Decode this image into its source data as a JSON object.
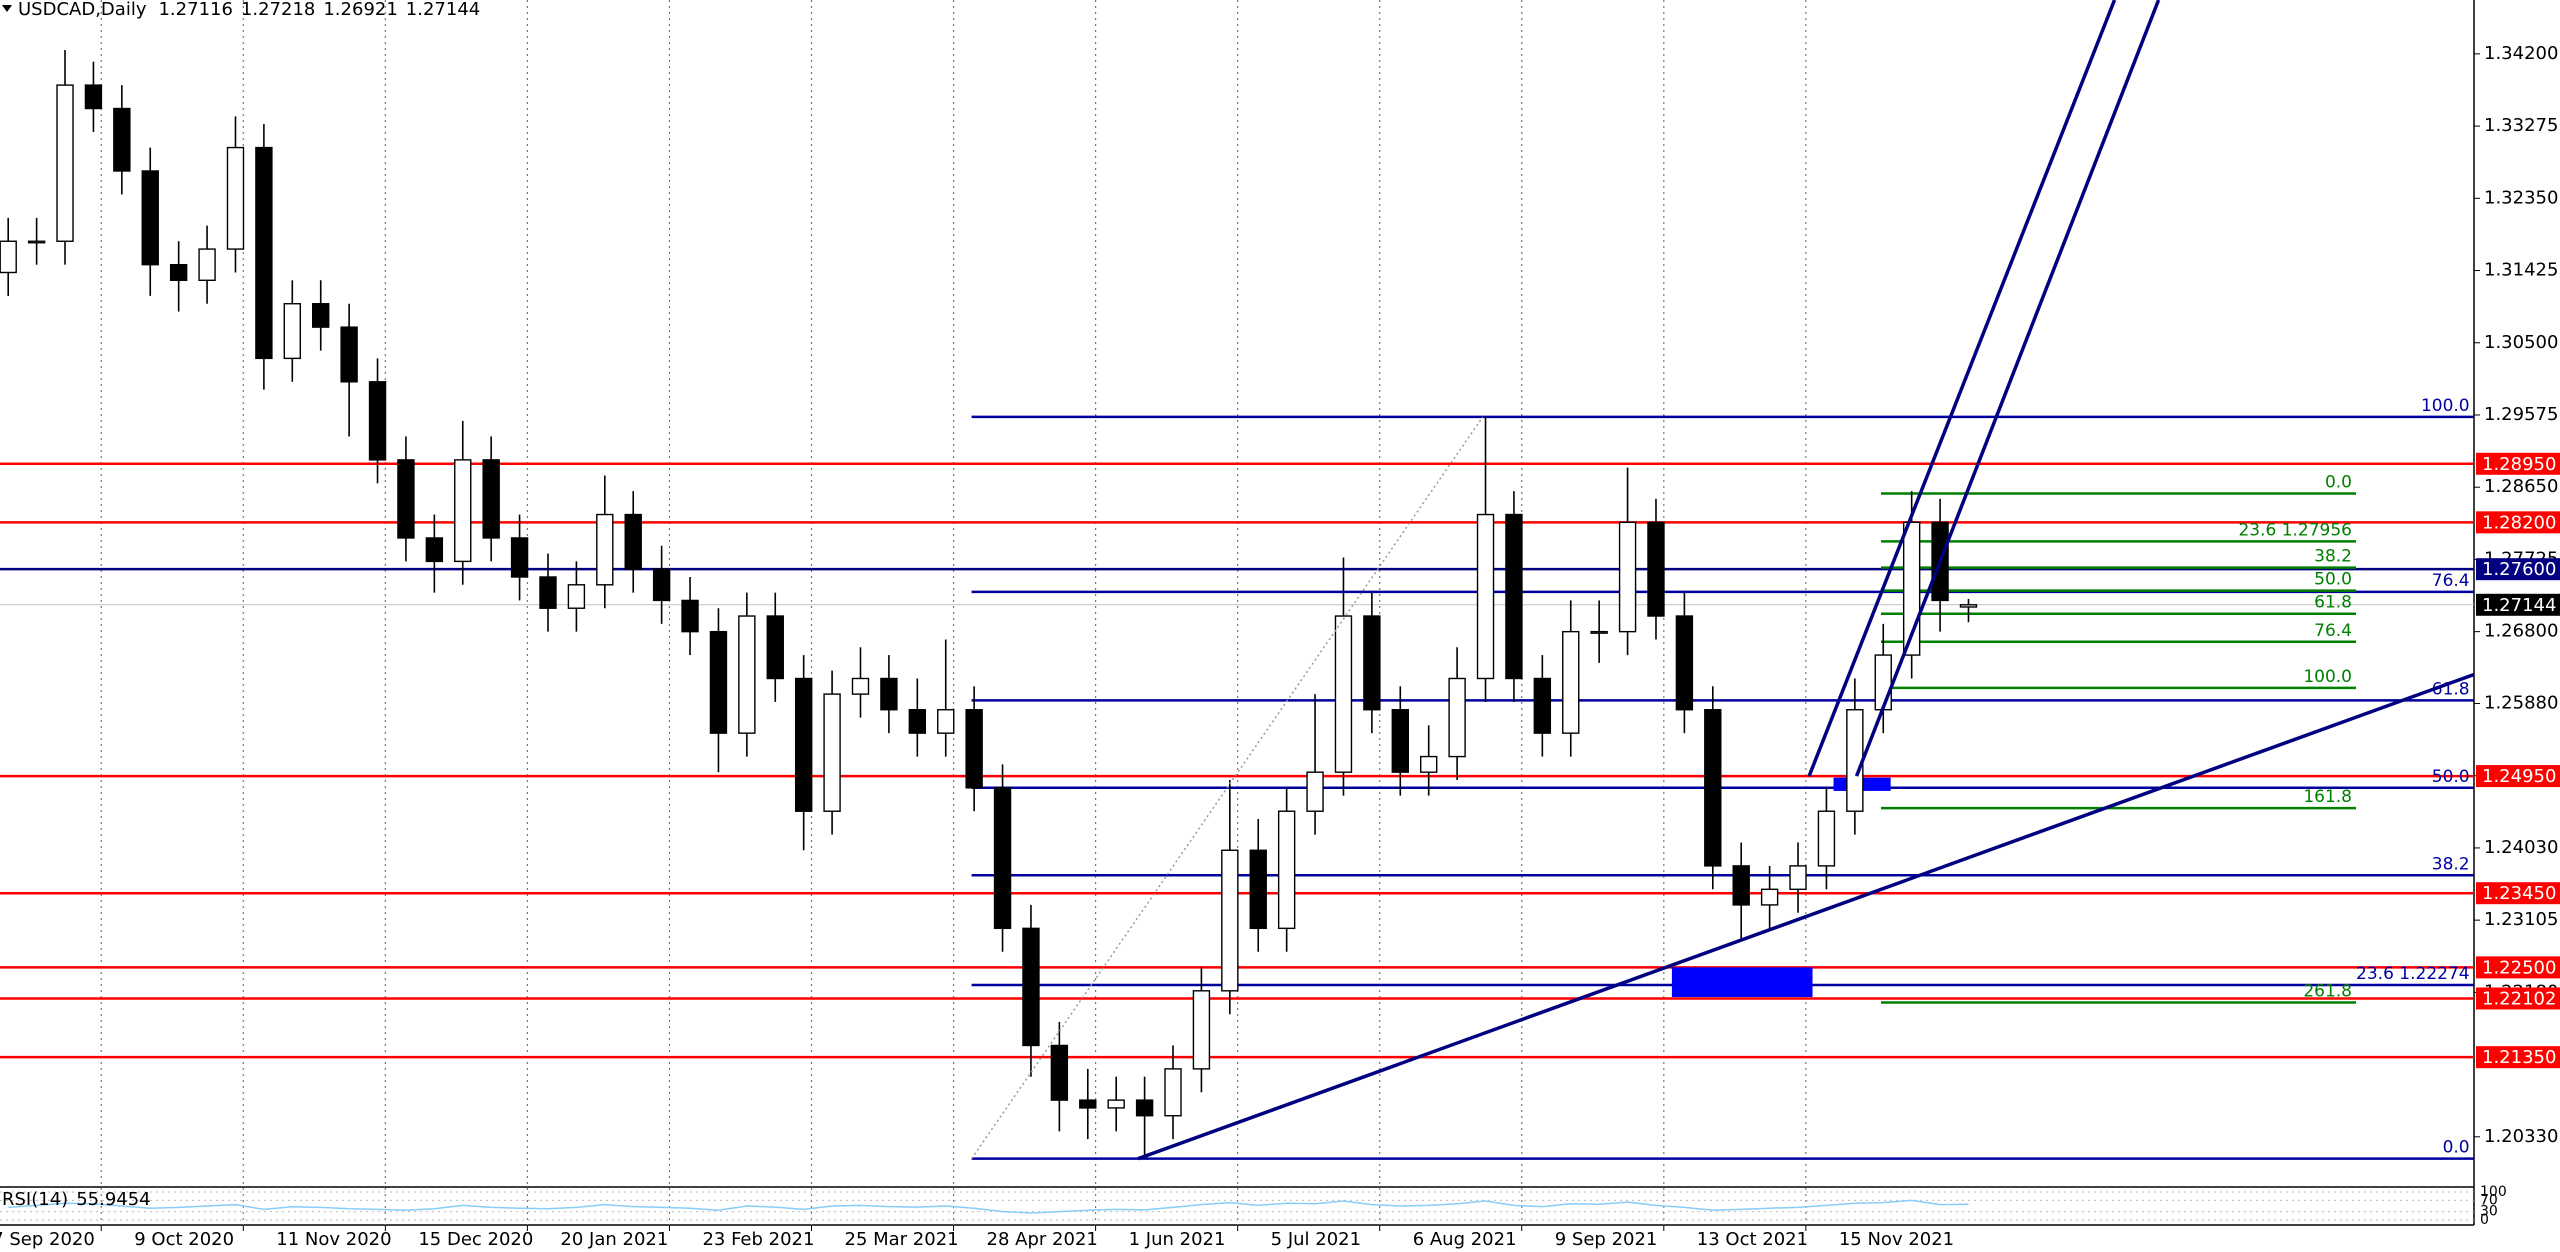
{
  "chart_data": {
    "type": "candlestick",
    "title": "USDCAD,Daily",
    "categories": [
      "7 Sep 2020",
      null,
      null,
      null,
      null,
      "9 Oct 2020",
      null,
      null,
      null,
      null,
      "11 Nov 2020",
      null,
      null,
      null,
      null,
      "15 Dec 2020",
      null,
      null,
      null,
      null,
      "20 Jan 2021",
      null,
      null,
      null,
      null,
      "23 Feb 2021",
      null,
      null,
      null,
      null,
      "25 Mar 2021",
      null,
      null,
      null,
      null,
      "28 Apr 2021",
      null,
      null,
      null,
      null,
      "1 Jun 2021",
      null,
      null,
      null,
      null,
      "5 Jul 2021",
      null,
      null,
      null,
      null,
      "6 Aug 2021",
      null,
      null,
      null,
      null,
      "9 Sep 2021",
      null,
      null,
      null,
      null,
      "13 Oct 2021",
      null,
      null,
      null,
      null,
      "15 Nov 2021",
      null,
      null,
      null,
      null
    ],
    "open": [
      1.314,
      1.318,
      1.318,
      1.338,
      1.335,
      1.327,
      1.315,
      1.313,
      1.317,
      1.33,
      1.303,
      1.31,
      1.307,
      1.3,
      1.29,
      1.28,
      1.277,
      1.29,
      1.28,
      1.275,
      1.271,
      1.274,
      1.283,
      1.276,
      1.272,
      1.268,
      1.255,
      1.27,
      1.262,
      1.245,
      1.26,
      1.262,
      1.258,
      1.255,
      1.258,
      1.248,
      1.23,
      1.215,
      1.208,
      1.207,
      1.208,
      1.206,
      1.212,
      1.222,
      1.24,
      1.23,
      1.245,
      1.25,
      1.27,
      1.258,
      1.25,
      1.252,
      1.262,
      1.283,
      1.262,
      1.255,
      1.268,
      1.268,
      1.282,
      1.27,
      1.258,
      1.238,
      1.233,
      1.235,
      1.238,
      1.245,
      1.258,
      1.265,
      1.282,
      1.27116
    ],
    "high": [
      1.321,
      1.321,
      1.3425,
      1.341,
      1.338,
      1.33,
      1.318,
      1.32,
      1.334,
      1.333,
      1.313,
      1.313,
      1.31,
      1.303,
      1.293,
      1.283,
      1.295,
      1.293,
      1.283,
      1.278,
      1.277,
      1.288,
      1.286,
      1.279,
      1.275,
      1.271,
      1.273,
      1.273,
      1.265,
      1.263,
      1.266,
      1.265,
      1.262,
      1.267,
      1.261,
      1.251,
      1.233,
      1.218,
      1.212,
      1.211,
      1.211,
      1.215,
      1.225,
      1.249,
      1.244,
      1.248,
      1.26,
      1.2775,
      1.273,
      1.261,
      1.256,
      1.266,
      1.2955,
      1.286,
      1.265,
      1.272,
      1.272,
      1.289,
      1.285,
      1.273,
      1.261,
      1.241,
      1.238,
      1.241,
      1.248,
      1.262,
      1.269,
      1.286,
      1.285,
      1.27218
    ],
    "low": [
      1.311,
      1.315,
      1.315,
      1.332,
      1.324,
      1.311,
      1.309,
      1.31,
      1.314,
      1.299,
      1.3,
      1.304,
      1.293,
      1.287,
      1.277,
      1.273,
      1.274,
      1.277,
      1.272,
      1.268,
      1.268,
      1.271,
      1.273,
      1.269,
      1.265,
      1.25,
      1.252,
      1.259,
      1.24,
      1.242,
      1.257,
      1.255,
      1.252,
      1.252,
      1.245,
      1.227,
      1.211,
      1.204,
      1.203,
      1.204,
      1.2005,
      1.203,
      1.209,
      1.219,
      1.227,
      1.227,
      1.242,
      1.247,
      1.255,
      1.247,
      1.247,
      1.249,
      1.259,
      1.259,
      1.252,
      1.252,
      1.264,
      1.265,
      1.267,
      1.255,
      1.235,
      1.2285,
      1.23,
      1.232,
      1.235,
      1.242,
      1.255,
      1.262,
      1.268,
      1.26921
    ],
    "close": [
      1.318,
      1.318,
      1.338,
      1.335,
      1.327,
      1.315,
      1.313,
      1.317,
      1.33,
      1.303,
      1.31,
      1.307,
      1.3,
      1.29,
      1.28,
      1.277,
      1.29,
      1.28,
      1.275,
      1.271,
      1.274,
      1.283,
      1.276,
      1.272,
      1.268,
      1.255,
      1.27,
      1.262,
      1.245,
      1.26,
      1.262,
      1.258,
      1.255,
      1.258,
      1.248,
      1.23,
      1.215,
      1.208,
      1.207,
      1.208,
      1.206,
      1.212,
      1.222,
      1.24,
      1.23,
      1.245,
      1.25,
      1.27,
      1.258,
      1.25,
      1.252,
      1.262,
      1.283,
      1.262,
      1.255,
      1.268,
      1.268,
      1.282,
      1.27,
      1.258,
      1.238,
      1.233,
      1.235,
      1.238,
      1.245,
      1.258,
      1.265,
      1.282,
      1.272,
      1.27144
    ],
    "bull_color": "#ffffff",
    "bear_color": "#000000",
    "ylim": [
      1.197,
      1.3489
    ],
    "yticks": [
      {
        "value": 1.342,
        "label": "1.34200"
      },
      {
        "value": 1.33275,
        "label": "1.33275"
      },
      {
        "value": 1.3235,
        "label": "1.32350"
      },
      {
        "value": 1.31425,
        "label": "1.31425"
      },
      {
        "value": 1.305,
        "label": "1.30500"
      },
      {
        "value": 1.29575,
        "label": "1.29575"
      },
      {
        "value": 1.2865,
        "label": "1.28650"
      },
      {
        "value": 1.27725,
        "label": "1.27725"
      },
      {
        "value": 1.268,
        "label": "1.26800"
      },
      {
        "value": 1.2588,
        "label": "1.25880"
      },
      {
        "value": 1.24955,
        "label": "1.24955"
      },
      {
        "value": 1.2403,
        "label": "1.24030"
      },
      {
        "value": 1.23105,
        "label": "1.23105"
      },
      {
        "value": 1.2218,
        "label": "1.22180"
      },
      {
        "value": 1.2033,
        "label": "1.20330"
      }
    ],
    "grid": true,
    "levels": [
      {
        "value": 1.2895,
        "label": "1.28950",
        "color": "#ff0000"
      },
      {
        "value": 1.282,
        "label": "1.28200",
        "color": "#ff0000"
      },
      {
        "value": 1.276,
        "label": "1.27600",
        "color": "#000080"
      },
      {
        "value": 1.2495,
        "label": "1.24950",
        "color": "#ff0000"
      },
      {
        "value": 1.2345,
        "label": "1.23450",
        "color": "#ff0000"
      },
      {
        "value": 1.225,
        "label": "1.22500",
        "color": "#ff0000"
      },
      {
        "value": 1.22102,
        "label": "1.22102",
        "color": "#ff0000"
      },
      {
        "value": 1.2135,
        "label": "1.21350",
        "color": "#ff0000"
      }
    ],
    "fib_retracements": [
      {
        "color": "#0000a0",
        "x": [
          33.91,
          86.78
        ],
        "levels": [
          {
            "label": "100.0",
            "price": 1.2955
          },
          {
            "label": "76.4",
            "price": 1.2731
          },
          {
            "label": "61.8",
            "price": 1.2592
          },
          {
            "label": "50.0",
            "price": 1.248
          },
          {
            "label": "38.2",
            "price": 1.2368
          },
          {
            "label": "23.6 1.22274",
            "price": 1.22274
          },
          {
            "label": "0.0",
            "price": 1.2005
          }
        ]
      },
      {
        "color": "#008000",
        "x": [
          65.92,
          82.64
        ],
        "levels": [
          {
            "label": "0.0",
            "price": 1.2857
          },
          {
            "label": "23.6 1.27956",
            "price": 1.27956
          },
          {
            "label": "38.2",
            "price": 1.2762
          },
          {
            "label": "50.0",
            "price": 1.27325
          },
          {
            "label": "61.8",
            "price": 1.2703
          },
          {
            "label": "76.4",
            "price": 1.2667
          },
          {
            "label": "100.0",
            "price": 1.2608
          },
          {
            "label": "161.8",
            "price": 1.2454
          },
          {
            "label": "261.8",
            "price": 1.2205
          }
        ]
      }
    ],
    "trendlines": [
      {
        "color": "#000080",
        "x": [
          63.39,
          74.14
        ],
        "y": [
          1.2495,
          1.3489
        ]
      },
      {
        "color": "#000080",
        "x": [
          65.06,
          75.69
        ],
        "y": [
          1.2495,
          1.3489
        ]
      },
      {
        "color": "#000080",
        "x": [
          39.77,
          86.78
        ],
        "y": [
          1.2005,
          1.2625
        ]
      },
      {
        "color": "#999999",
        "dotted": true,
        "x": [
          33.91,
          51.9
        ],
        "y": [
          1.2005,
          1.2955
        ]
      }
    ],
    "rectangles": [
      {
        "color": "#0000ff",
        "x": [
          58.56,
          63.51
        ],
        "y": [
          1.2212,
          1.225
        ]
      },
      {
        "color": "#0000ff",
        "x": [
          64.25,
          66.26
        ],
        "y": [
          1.2476,
          1.2493
        ]
      }
    ],
    "rsi": {
      "label": "RSI(14)",
      "color": "#87cefa",
      "ylim": [
        0,
        100
      ],
      "yticks": [
        100,
        70,
        30,
        0
      ],
      "values": [
        45,
        52,
        60,
        58,
        50,
        42,
        45,
        50,
        55,
        38,
        47,
        45,
        40,
        38,
        35,
        40,
        52,
        45,
        42,
        40,
        45,
        55,
        48,
        45,
        42,
        35,
        50,
        46,
        38,
        50,
        52,
        48,
        46,
        50,
        42,
        30,
        25,
        30,
        35,
        38,
        36,
        45,
        55,
        62,
        52,
        60,
        58,
        68,
        55,
        50,
        52,
        58,
        68,
        52,
        48,
        58,
        56,
        64,
        52,
        45,
        35,
        38,
        42,
        45,
        52,
        60,
        62,
        70,
        55,
        55.9454
      ]
    }
  }
}
